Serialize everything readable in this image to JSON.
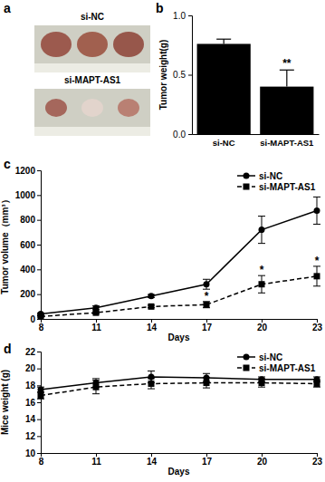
{
  "photo_panel": {
    "label": "a",
    "groups": [
      "si-NC",
      "si-MAPT-AS1"
    ]
  },
  "chart_data": [
    {
      "type": "bar",
      "annotations": [
        {
          "text": "b"
        },
        {
          "text": "**",
          "category": "si-MAPT-AS1"
        }
      ],
      "y_label": "Tumor weight(g)",
      "categories": [
        "si-NC",
        "si-MAPT-AS1"
      ],
      "values": [
        0.76,
        0.4
      ],
      "errors": [
        0.04,
        0.14
      ],
      "color": "#000000",
      "ylim": [
        0,
        1
      ],
      "yticks": [
        {
          "value": 0,
          "label": "0.0"
        },
        0.5,
        {
          "value": 1,
          "label": "1.0"
        }
      ],
      "grid": false
    },
    {
      "type": "line",
      "annotations": [
        {
          "text": "c"
        },
        {
          "text": "*",
          "x": 17,
          "series": "si-MAPT-AS1"
        },
        {
          "text": "*",
          "x": 20,
          "series": "si-MAPT-AS1"
        },
        {
          "text": "*",
          "x": 23,
          "series": "si-MAPT-AS1"
        }
      ],
      "x_label": "Days",
      "y_label": "Tumor volume（mm³）",
      "x": [
        8,
        11,
        14,
        17,
        20,
        23
      ],
      "series": [
        {
          "name": "si-NC",
          "color": "#000000",
          "marker": "circle",
          "line_style": "solid",
          "values": [
            40,
            90,
            185,
            280,
            720,
            875
          ],
          "errors": [
            8,
            15,
            12,
            40,
            110,
            110
          ]
        },
        {
          "name": "si-MAPT-AS1",
          "color": "#000000",
          "marker": "square",
          "line_style": "dashed",
          "values": [
            20,
            50,
            100,
            115,
            280,
            345
          ],
          "errors": [
            5,
            8,
            10,
            25,
            70,
            80
          ]
        }
      ],
      "xlim": [
        8,
        23
      ],
      "xticks": [
        8,
        11,
        14,
        17,
        20,
        23
      ],
      "ylim": [
        0,
        1200
      ],
      "yticks": [
        0,
        200,
        400,
        600,
        800,
        1000,
        1200
      ],
      "legend": "upper right",
      "grid": false
    },
    {
      "type": "line",
      "annotations": [
        {
          "text": "d"
        }
      ],
      "x_label": "Days",
      "y_label": "Mice weight (g)",
      "x": [
        8,
        11,
        14,
        17,
        20,
        23
      ],
      "series": [
        {
          "name": "si-NC",
          "color": "#000000",
          "marker": "circle",
          "line_style": "solid",
          "values": [
            17.5,
            18.3,
            19.0,
            18.9,
            18.7,
            18.7
          ],
          "errors": [
            0.3,
            0.5,
            0.7,
            0.5,
            0.3,
            0.3
          ]
        },
        {
          "name": "si-MAPT-AS1",
          "color": "#000000",
          "marker": "square",
          "line_style": "dashed",
          "values": [
            16.8,
            17.8,
            18.2,
            18.3,
            18.3,
            18.2
          ],
          "errors": [
            0.4,
            0.8,
            0.6,
            0.6,
            0.5,
            0.4
          ]
        }
      ],
      "xlim": [
        8,
        23
      ],
      "xticks": [
        8,
        11,
        14,
        17,
        20,
        23
      ],
      "ylim": [
        10,
        22
      ],
      "yticks": [
        10,
        12,
        14,
        16,
        18,
        20,
        22
      ],
      "legend": "upper right",
      "grid": false
    }
  ]
}
